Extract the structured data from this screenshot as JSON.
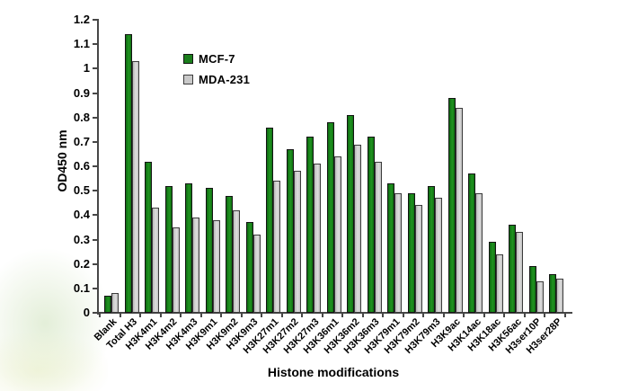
{
  "chart_data": {
    "type": "bar",
    "title": "",
    "xlabel": "Histone modifications",
    "ylabel": "OD450 nm",
    "ylim": [
      0,
      1.2
    ],
    "ytick_labels": [
      "0",
      "0.1",
      "0.2",
      "0.3",
      "0.4",
      "0.5",
      "0.6",
      "0.7",
      "0.8",
      "0.9",
      "1",
      "1.1",
      "1.2"
    ],
    "grid": false,
    "legend_position": "inside-top-left",
    "axis_color": "#474747",
    "text_color": "#000000",
    "categories": [
      "Blank",
      "Total H3",
      "H3K4m1",
      "H3K4m2",
      "H3K4m3",
      "H3K9m1",
      "H3K9m2",
      "H3K9m3",
      "H3K27m1",
      "H3K27m2",
      "H3K27m3",
      "H3K36m1",
      "H3K36m2",
      "H3K36m3",
      "H3K79m1",
      "H3K79m2",
      "H3K79m3",
      "H3K9ac",
      "H3K14ac",
      "H3K18ac",
      "H3K56ac",
      "H3ser10P",
      "H3ser28P"
    ],
    "series": [
      {
        "name": "MCF-7",
        "color": "#1b7e1c",
        "border_color": "#141414",
        "values": [
          0.07,
          1.14,
          0.62,
          0.52,
          0.53,
          0.51,
          0.48,
          0.37,
          0.76,
          0.67,
          0.72,
          0.78,
          0.81,
          0.72,
          0.53,
          0.49,
          0.52,
          0.88,
          0.57,
          0.29,
          0.36,
          0.19,
          0.16
        ]
      },
      {
        "name": "MDA-231",
        "color": "#c9c9c9",
        "border_color": "#3c3c3c",
        "values": [
          0.08,
          1.03,
          0.43,
          0.35,
          0.39,
          0.38,
          0.42,
          0.32,
          0.54,
          0.58,
          0.61,
          0.64,
          0.69,
          0.62,
          0.49,
          0.44,
          0.47,
          0.84,
          0.49,
          0.24,
          0.33,
          0.13,
          0.14
        ]
      }
    ]
  }
}
